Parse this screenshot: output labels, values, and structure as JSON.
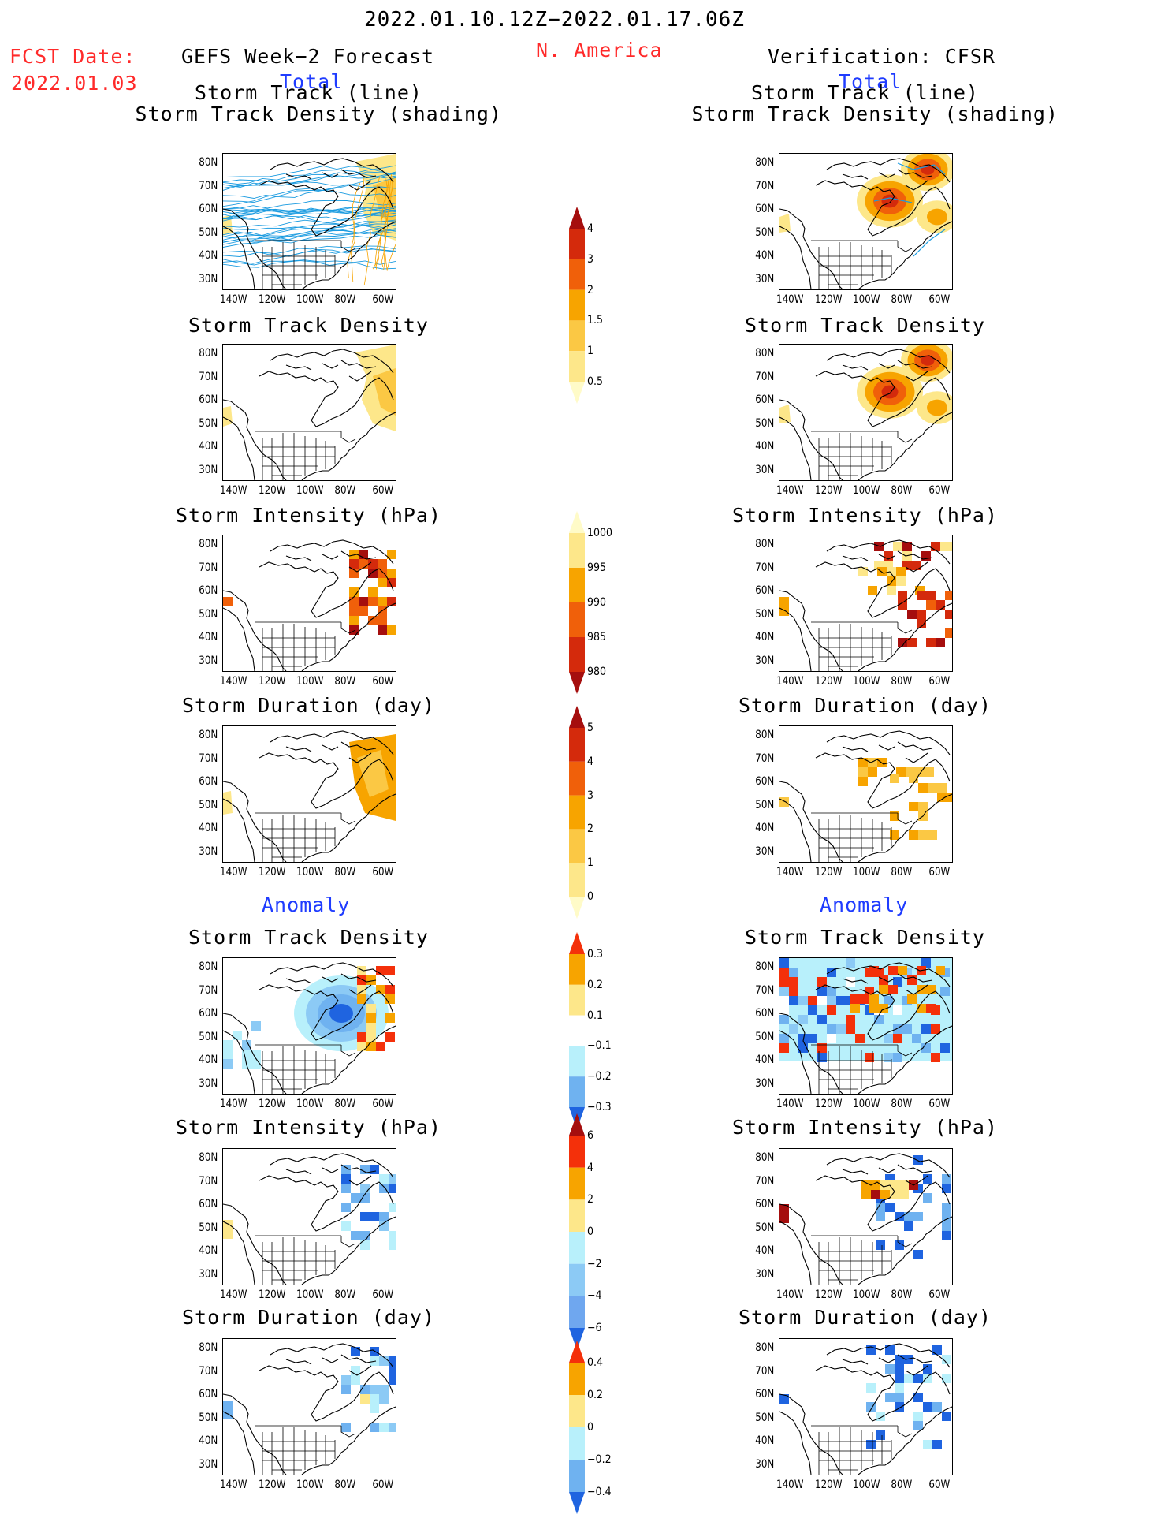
{
  "header": {
    "date_range": "2022.01.10.12Z−2022.01.17.06Z",
    "region": "N. America",
    "fcst_label": "FCST Date:",
    "fcst_date": "2022.01.03",
    "left_title": "GEFS Week−2 Forecast",
    "right_title": "Verification: CFSR"
  },
  "sections": {
    "total": "Total",
    "anomaly": "Anomaly"
  },
  "panel_titles": {
    "track_line": "Storm Track (line)",
    "track_shading": "Storm Track Density (shading)",
    "density": "Storm Track Density",
    "intensity": "Storm Intensity (hPa)",
    "duration": "Storm Duration (day)"
  },
  "axes": {
    "lat_labels": [
      "80N",
      "70N",
      "60N",
      "50N",
      "40N",
      "30N"
    ],
    "lon_labels": [
      "140W",
      "120W",
      "100W",
      "80W",
      "60W"
    ]
  },
  "colorbars": [
    {
      "name": "track-density-colorbar",
      "labels": [
        "4",
        "3",
        "2",
        "1.5",
        "1",
        "0.5"
      ],
      "colors": [
        "#a50e0e",
        "#d42a0c",
        "#f0600a",
        "#f7a400",
        "#fbc844",
        "#fde78a",
        "#fffbc8"
      ]
    },
    {
      "name": "intensity-colorbar",
      "labels": [
        "1000",
        "995",
        "990",
        "985",
        "980"
      ],
      "colors": [
        "#fffbc8",
        "#fde78a",
        "#f7a400",
        "#f0600a",
        "#d42a0c",
        "#a50e0e"
      ]
    },
    {
      "name": "duration-colorbar",
      "labels": [
        "5",
        "4",
        "3",
        "2",
        "1",
        "0"
      ],
      "colors": [
        "#a50e0e",
        "#d42a0c",
        "#f0600a",
        "#f7a400",
        "#fbc844",
        "#fde78a",
        "#fffbc8"
      ]
    },
    {
      "name": "density-anomaly-colorbar",
      "labels": [
        "0.3",
        "0.2",
        "0.1",
        "−0.1",
        "−0.2",
        "−0.3"
      ],
      "colors": [
        "#f4300a",
        "#f7a400",
        "#fde78a",
        "#ffffff",
        "#b8f0fb",
        "#6fb2f0",
        "#1f64e0"
      ]
    },
    {
      "name": "intensity-anomaly-colorbar",
      "labels": [
        "6",
        "4",
        "2",
        "0",
        "−2",
        "−4",
        "−6"
      ],
      "colors": [
        "#a50e0e",
        "#f4300a",
        "#f7a400",
        "#fde78a",
        "#b8f0fb",
        "#8ccaf5",
        "#6fa7ef",
        "#1f64e0"
      ]
    },
    {
      "name": "duration-anomaly-colorbar",
      "labels": [
        "0.4",
        "0.2",
        "0",
        "−0.2",
        "−0.4"
      ],
      "colors": [
        "#f4300a",
        "#f7a400",
        "#fde78a",
        "#b8f0fb",
        "#6fb2f0",
        "#1f64e0"
      ]
    }
  ],
  "palette": {
    "title_red": "#ff2a2a",
    "title_blue": "#1f3cff",
    "track_line": "#1a9be0"
  }
}
